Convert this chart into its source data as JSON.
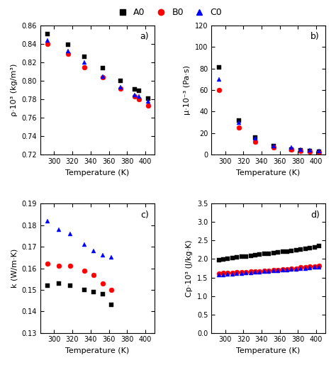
{
  "subplot_a": {
    "title": "a)",
    "xlabel": "Temperature (K)",
    "ylabel": "ρ·10³ (kg/m³)",
    "ylim": [
      0.72,
      0.86
    ],
    "yticks": [
      0.72,
      0.74,
      0.76,
      0.78,
      0.8,
      0.82,
      0.84,
      0.86
    ],
    "xlim": [
      285,
      410
    ],
    "xticks": [
      300,
      320,
      340,
      360,
      380,
      400
    ],
    "A0_x": [
      293,
      315,
      333,
      353,
      373,
      388,
      393,
      403
    ],
    "A0_y": [
      0.851,
      0.839,
      0.826,
      0.814,
      0.8,
      0.791,
      0.789,
      0.781
    ],
    "B0_x": [
      293,
      315,
      333,
      353,
      373,
      388,
      393,
      403
    ],
    "B0_y": [
      0.84,
      0.829,
      0.815,
      0.804,
      0.792,
      0.783,
      0.78,
      0.773
    ],
    "C0_x": [
      293,
      315,
      333,
      353,
      373,
      388,
      393,
      403
    ],
    "C0_y": [
      0.844,
      0.832,
      0.82,
      0.805,
      0.793,
      0.785,
      0.783,
      0.778
    ]
  },
  "subplot_b": {
    "title": "b)",
    "xlabel": "Temperature (K)",
    "ylabel": "μ·10⁻³ (Pa·s)",
    "ylim": [
      0,
      120
    ],
    "yticks": [
      0,
      20,
      40,
      60,
      80,
      100,
      120
    ],
    "xlim": [
      285,
      410
    ],
    "xticks": [
      300,
      320,
      340,
      360,
      380,
      400
    ],
    "A0_x": [
      293,
      315,
      333,
      353,
      373,
      383,
      393,
      403
    ],
    "A0_y": [
      81,
      32,
      16,
      8,
      5,
      4,
      3.5,
      2.5
    ],
    "B0_x": [
      293,
      315,
      333,
      353,
      373,
      383,
      393,
      403
    ],
    "B0_y": [
      60,
      25,
      12,
      7,
      5,
      3.5,
      3,
      2
    ],
    "C0_x": [
      293,
      315,
      333,
      353,
      373,
      383,
      393,
      403
    ],
    "C0_y": [
      70,
      30,
      15,
      8,
      7,
      5,
      4,
      3.5
    ]
  },
  "subplot_c": {
    "title": "c)",
    "xlabel": "Temperature (K)",
    "ylabel": "k (W/m·K)",
    "ylim": [
      0.13,
      0.19
    ],
    "yticks": [
      0.13,
      0.14,
      0.15,
      0.16,
      0.17,
      0.18,
      0.19
    ],
    "xlim": [
      285,
      410
    ],
    "xticks": [
      300,
      320,
      340,
      360,
      380,
      400
    ],
    "A0_x": [
      293,
      305,
      318,
      333,
      343,
      353,
      363
    ],
    "A0_y": [
      0.152,
      0.153,
      0.152,
      0.15,
      0.149,
      0.148,
      0.143
    ],
    "B0_x": [
      293,
      305,
      318,
      333,
      343,
      353,
      363
    ],
    "B0_y": [
      0.162,
      0.161,
      0.161,
      0.159,
      0.157,
      0.153,
      0.15
    ],
    "C0_x": [
      293,
      305,
      318,
      333,
      343,
      353,
      363
    ],
    "C0_y": [
      0.182,
      0.178,
      0.176,
      0.171,
      0.168,
      0.166,
      0.165
    ]
  },
  "subplot_d": {
    "title": "d)",
    "xlabel": "Temperature (K)",
    "ylabel": "Cp·10³ (J/kg·K)",
    "ylim": [
      0.0,
      3.5
    ],
    "yticks": [
      0.0,
      0.5,
      1.0,
      1.5,
      2.0,
      2.5,
      3.0,
      3.5
    ],
    "xlim": [
      285,
      410
    ],
    "xticks": [
      300,
      320,
      340,
      360,
      380,
      400
    ],
    "A0_x": [
      293,
      298,
      303,
      308,
      313,
      318,
      323,
      328,
      333,
      338,
      343,
      348,
      353,
      358,
      363,
      368,
      373,
      378,
      383,
      388,
      393,
      398,
      403
    ],
    "A0_y": [
      1.97,
      1.99,
      2.01,
      2.02,
      2.04,
      2.06,
      2.07,
      2.09,
      2.1,
      2.12,
      2.14,
      2.15,
      2.17,
      2.18,
      2.2,
      2.21,
      2.22,
      2.24,
      2.26,
      2.28,
      2.3,
      2.32,
      2.35
    ],
    "B0_x": [
      293,
      298,
      303,
      308,
      313,
      318,
      323,
      328,
      333,
      338,
      343,
      348,
      353,
      358,
      363,
      368,
      373,
      378,
      383,
      388,
      393,
      398,
      403
    ],
    "B0_y": [
      1.61,
      1.62,
      1.63,
      1.63,
      1.64,
      1.65,
      1.65,
      1.66,
      1.67,
      1.67,
      1.68,
      1.69,
      1.7,
      1.71,
      1.72,
      1.73,
      1.74,
      1.75,
      1.77,
      1.78,
      1.79,
      1.8,
      1.82
    ],
    "C0_x": [
      293,
      298,
      303,
      308,
      313,
      318,
      323,
      328,
      333,
      338,
      343,
      348,
      353,
      358,
      363,
      368,
      373,
      378,
      383,
      388,
      393,
      398,
      403
    ],
    "C0_y": [
      1.56,
      1.57,
      1.58,
      1.59,
      1.6,
      1.61,
      1.62,
      1.63,
      1.64,
      1.65,
      1.66,
      1.67,
      1.68,
      1.69,
      1.7,
      1.71,
      1.72,
      1.73,
      1.74,
      1.75,
      1.76,
      1.77,
      1.78
    ]
  }
}
